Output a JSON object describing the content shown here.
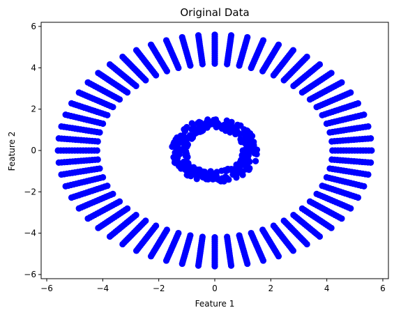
{
  "chart_data": {
    "type": "scatter",
    "title": "Original Data",
    "xlabel": "Feature 1",
    "ylabel": "Feature 2",
    "xlim": [
      -6.2,
      6.2
    ],
    "ylim": [
      -6.2,
      6.2
    ],
    "xticks": [
      -6,
      -4,
      -2,
      0,
      2,
      4,
      6
    ],
    "yticks": [
      -6,
      -4,
      -2,
      0,
      2,
      4,
      6
    ],
    "tick_labels_x": [
      "−6",
      "−4",
      "−2",
      "0",
      "2",
      "4",
      "6"
    ],
    "tick_labels_y": [
      "−6",
      "−4",
      "−2",
      "0",
      "2",
      "4",
      "6"
    ],
    "grid": false,
    "marker_color": "#0000ff",
    "series": [
      {
        "description": "outer ring: 60 radial spokes, radius 4.2 to 5.6 step 0.1",
        "spokes": 60,
        "r_min": 4.2,
        "r_max": 5.6,
        "r_step": 0.1,
        "style": "spokes"
      },
      {
        "description": "inner ring: points between radius 1.0 and 1.55",
        "count": 260,
        "r_min": 1.0,
        "r_max": 1.55,
        "style": "ring"
      }
    ]
  }
}
